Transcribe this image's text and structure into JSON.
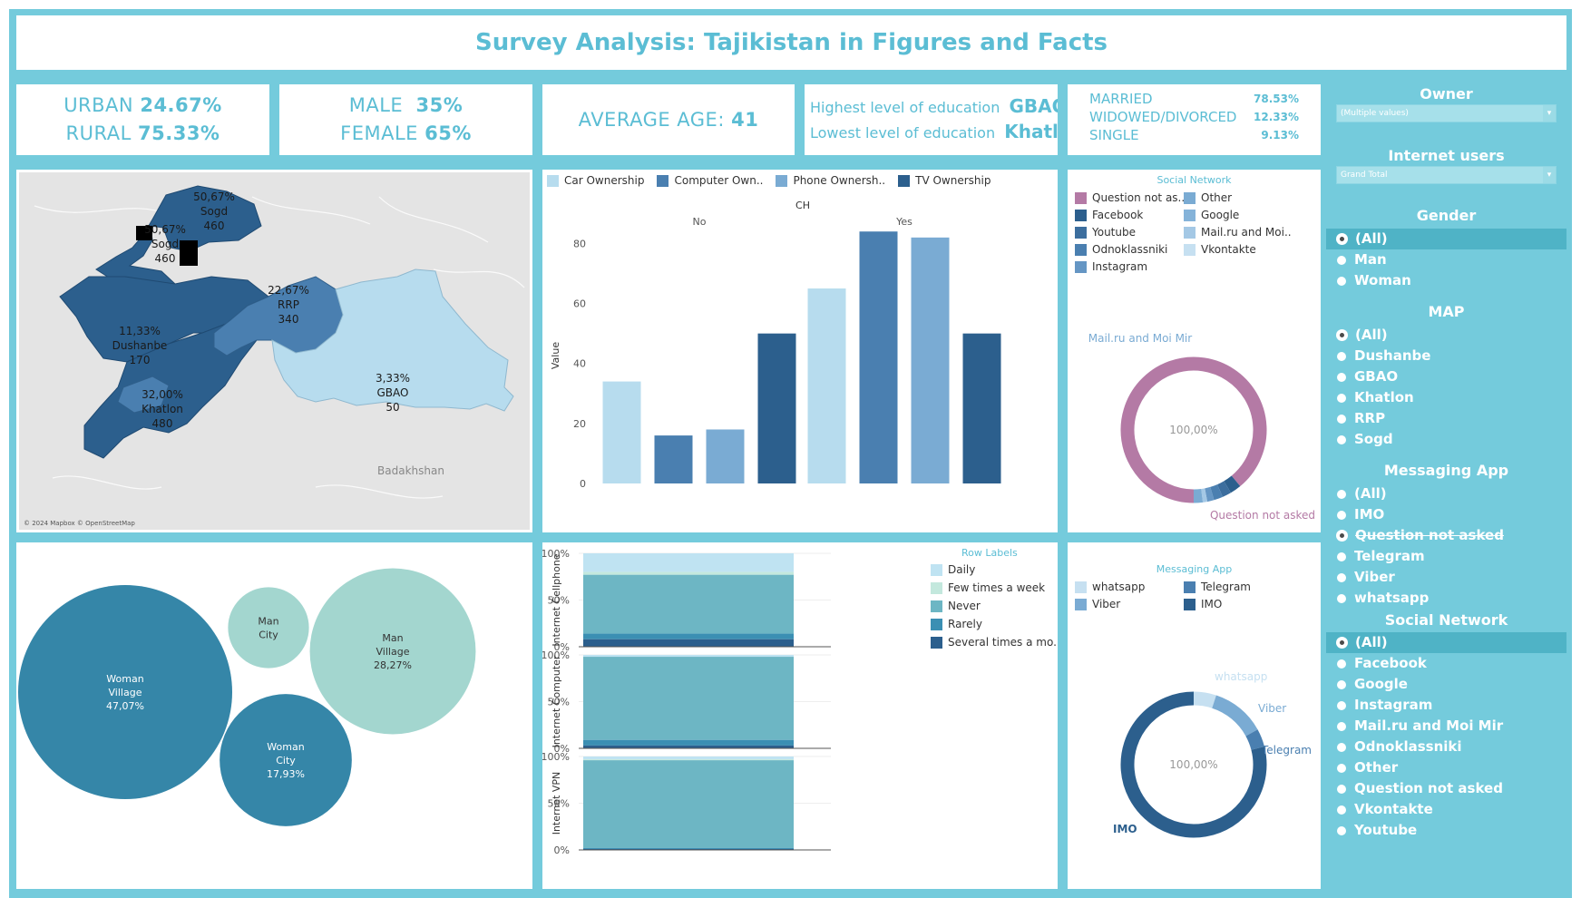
{
  "title": "Survey Analysis: Tajikistan in Figures and Facts",
  "kpis": {
    "urban_label": "URBAN",
    "urban_value": "24.67%",
    "rural_label": "RURAL",
    "rural_value": "75.33%",
    "male_label": "MALE",
    "male_value": "35%",
    "female_label": "FEMALE",
    "female_value": "65%",
    "age_label": "AVERAGE AGE:",
    "age_value": "41",
    "edu_high_label": "Highest level of education",
    "edu_high_value": "GBAO",
    "edu_low_label": "Lowest level of education",
    "edu_low_value": "Khatlon",
    "marital": [
      {
        "label": "MARRIED",
        "value": "78.53%"
      },
      {
        "label": "WIDOWED/DIVORCED",
        "value": "12.33%"
      },
      {
        "label": "SINGLE",
        "value": "9.13%"
      }
    ]
  },
  "map": {
    "regions": [
      {
        "pct": "50,67%",
        "name": "Sogd",
        "n": "460"
      },
      {
        "pct": "50,67%",
        "name": "Sogd",
        "n": "460"
      },
      {
        "pct": "22,67%",
        "name": "RRP",
        "n": "340"
      },
      {
        "pct": "11,33%",
        "name": "Dushanbe",
        "n": "170"
      },
      {
        "pct": "32,00%",
        "name": "Khatlon",
        "n": "480"
      },
      {
        "pct": "3,33%",
        "name": "GBAO",
        "n": "50"
      }
    ],
    "place_label": "Badakhshan",
    "attribution": "© 2024 Mapbox © OpenStreetMap",
    "colors": {
      "dark": "#2c5f8d",
      "mid": "#4a7fb0",
      "light": "#b7dcee",
      "base": "#e4e4e4"
    }
  },
  "chart_data": [
    {
      "type": "bar",
      "title": "CH",
      "ylabel": "Value",
      "ylim": [
        0,
        88
      ],
      "yticks": [
        "0",
        "20",
        "40",
        "60",
        "80"
      ],
      "groups": [
        "No",
        "Yes"
      ],
      "series": [
        {
          "name": "Car Ownership",
          "legend": "Car Ownership",
          "color": "#b7dcee",
          "values": [
            34,
            65
          ]
        },
        {
          "name": "Computer Ownership",
          "legend": "Computer Own..",
          "color": "#4a7fb0",
          "values": [
            16,
            84
          ]
        },
        {
          "name": "Phone Ownership",
          "legend": "Phone Ownersh..",
          "color": "#7aabd3",
          "values": [
            18,
            82
          ]
        },
        {
          "name": "TV Ownership",
          "legend": "TV Ownership",
          "color": "#2c5f8d",
          "values": [
            50,
            50
          ]
        }
      ]
    },
    {
      "type": "bubble",
      "items": [
        {
          "label1": "Woman",
          "label2": "Village",
          "label3": "47,07%",
          "value": 47.07,
          "color": "#3586a8"
        },
        {
          "label1": "Man",
          "label2": "City",
          "label3": "",
          "value": 6.73,
          "color": "#a3d6cf"
        },
        {
          "label1": "Man",
          "label2": "Village",
          "label3": "28,27%",
          "value": 28.27,
          "color": "#a3d6cf"
        },
        {
          "label1": "Woman",
          "label2": "City",
          "label3": "17,93%",
          "value": 17.93,
          "color": "#3586a8"
        }
      ]
    },
    {
      "type": "stacked-bar",
      "legend_title": "Row Labels",
      "yticks": [
        "0%",
        "50%",
        "100%"
      ],
      "categories": [
        "Daily",
        "Few times a week",
        "Never",
        "Rarely",
        "Several times a mo.."
      ],
      "colors": [
        "#bfe3f2",
        "#c3e8dd",
        "#6db6c4",
        "#3b8fb3",
        "#2c5f8d"
      ],
      "series": [
        {
          "name": "Internet Cellphone",
          "values": [
            20,
            3,
            63,
            6,
            8
          ]
        },
        {
          "name": "Internet Computer",
          "values": [
            2,
            0,
            89,
            6,
            3
          ]
        },
        {
          "name": "Internet VPN",
          "values": [
            3,
            1,
            94,
            1,
            1
          ]
        }
      ]
    },
    {
      "type": "pie",
      "legend_title": "Social Network",
      "legend": [
        {
          "name": "Question not as..",
          "color": "#b47aa5"
        },
        {
          "name": "Other",
          "color": "#7aabd3"
        },
        {
          "name": "Facebook",
          "color": "#2c5f8d"
        },
        {
          "name": "Google",
          "color": "#85b3d9"
        },
        {
          "name": "Youtube",
          "color": "#3c6e9e"
        },
        {
          "name": "Mail.ru and Moi..",
          "color": "#a4c8e5"
        },
        {
          "name": "Odnoklassniki",
          "color": "#4a7fb0"
        },
        {
          "name": "Vkontakte",
          "color": "#c6e0f1"
        },
        {
          "name": "Instagram",
          "color": "#6596c4"
        }
      ],
      "slices": [
        {
          "name": "Question not asked",
          "value": 89,
          "color": "#b47aa5"
        },
        {
          "name": "Facebook",
          "value": 2.5,
          "color": "#2c5f8d"
        },
        {
          "name": "Youtube",
          "value": 2,
          "color": "#3c6e9e"
        },
        {
          "name": "Odnoklassniki",
          "value": 2,
          "color": "#4a7fb0"
        },
        {
          "name": "Instagram",
          "value": 1.5,
          "color": "#6596c4"
        },
        {
          "name": "Mail.ru and Moi Mir",
          "value": 1,
          "color": "#a4c8e5"
        },
        {
          "name": "Other",
          "value": 2,
          "color": "#7aabd3"
        }
      ],
      "center_label": "100,00%",
      "top_label": "Mail.ru and Moi Mir",
      "bottom_label": "Question not asked"
    },
    {
      "type": "pie",
      "legend_title": "Messaging App",
      "legend": [
        {
          "name": "whatsapp",
          "color": "#c6e0f1"
        },
        {
          "name": "Telegram",
          "color": "#4a7fb0"
        },
        {
          "name": "Viber",
          "color": "#7aabd3"
        },
        {
          "name": "IMO",
          "color": "#2c5f8d"
        }
      ],
      "slices": [
        {
          "name": "whatsapp",
          "value": 5,
          "color": "#c6e0f1"
        },
        {
          "name": "Viber",
          "value": 12,
          "color": "#7aabd3"
        },
        {
          "name": "Telegram",
          "value": 4,
          "color": "#4a7fb0"
        },
        {
          "name": "IMO",
          "value": 79,
          "color": "#2c5f8d"
        }
      ],
      "center_label": "100,00%",
      "labels": {
        "whatsapp": "whatsapp",
        "viber": "Viber",
        "telegram": "Telegram",
        "imo": "IMO"
      }
    }
  ],
  "filters": {
    "owner": {
      "title": "Owner",
      "value": "(Multiple values)"
    },
    "internet": {
      "title": "Internet users",
      "value": "Grand Total"
    },
    "gender": {
      "title": "Gender",
      "options": [
        "(All)",
        "Man",
        "Woman"
      ],
      "selected": 0
    },
    "map": {
      "title": "MAP",
      "options": [
        "(All)",
        "Dushanbe",
        "GBAO",
        "Khatlon",
        "RRP",
        "Sogd"
      ],
      "selected": 0
    },
    "messaging": {
      "title": "Messaging App",
      "options": [
        "(All)",
        "IMO",
        "Question not asked",
        "Telegram",
        "Viber",
        "whatsapp"
      ],
      "selected": 2
    },
    "social": {
      "title": "Social Network",
      "options": [
        "(All)",
        "Facebook",
        "Google",
        "Instagram",
        "Mail.ru and Moi Mir",
        "Odnoklassniki",
        "Other",
        "Question not asked",
        "Vkontakte",
        "Youtube"
      ],
      "selected": 0
    }
  }
}
